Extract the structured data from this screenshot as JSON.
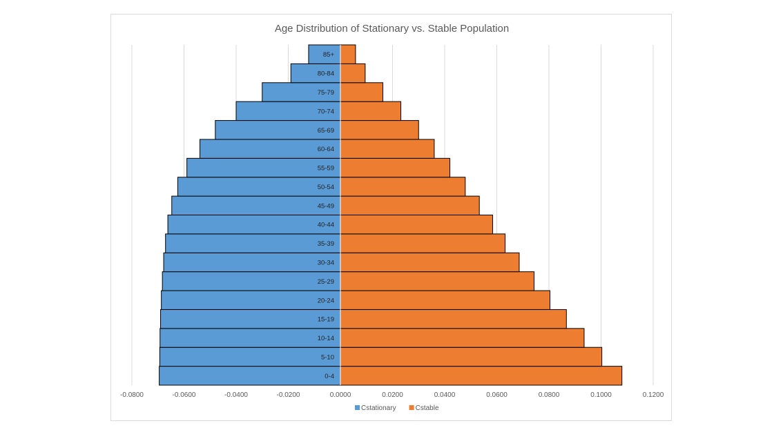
{
  "chart_data": {
    "type": "bar",
    "orientation": "horizontal",
    "title": "Age Distribution of Stationary vs. Stable Population",
    "categories": [
      "0-4",
      "5-10",
      "10-14",
      "15-19",
      "20-24",
      "25-29",
      "30-34",
      "35-39",
      "40-44",
      "45-49",
      "50-54",
      "55-59",
      "60-64",
      "65-69",
      "70-74",
      "75-79",
      "80-84",
      "85+"
    ],
    "series": [
      {
        "name": "Cstationary",
        "color": "#5b9bd5",
        "values": [
          -0.0695,
          -0.0693,
          -0.0692,
          -0.069,
          -0.0687,
          -0.0683,
          -0.0678,
          -0.0671,
          -0.0662,
          -0.0647,
          -0.0624,
          -0.0589,
          -0.0539,
          -0.048,
          -0.04,
          -0.03,
          -0.019,
          -0.0122
        ]
      },
      {
        "name": "Cstable",
        "color": "#ed7d31",
        "values": [
          0.108,
          0.1003,
          0.0935,
          0.0867,
          0.0804,
          0.0743,
          0.0686,
          0.0632,
          0.0584,
          0.0533,
          0.0479,
          0.042,
          0.036,
          0.03,
          0.0232,
          0.0163,
          0.0095,
          0.0058
        ]
      }
    ],
    "x_ticks": [
      "-0.0800",
      "-0.0600",
      "-0.0400",
      "-0.0200",
      "0.0000",
      "0.0200",
      "0.0400",
      "0.0600",
      "0.0800",
      "0.1000",
      "0.1200"
    ],
    "xlim": [
      -0.08,
      0.12
    ],
    "grid": "vertical",
    "legend": "bottom"
  }
}
